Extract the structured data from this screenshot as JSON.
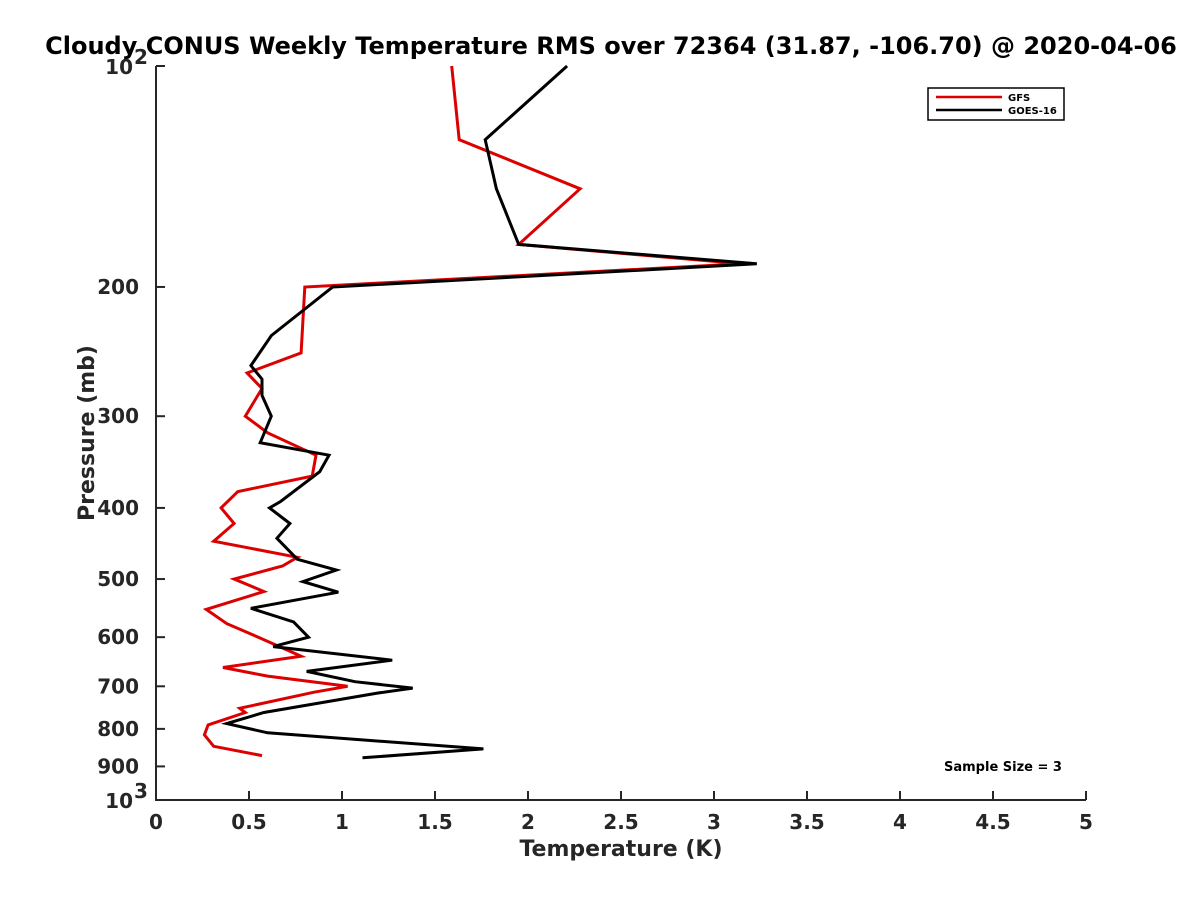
{
  "chart_data": {
    "type": "line",
    "title": "Cloudy CONUS Weekly Temperature RMS over 72364 (31.87, -106.70) @ 2020-04-06",
    "xlabel": "Temperature (K)",
    "ylabel": "Pressure (mb)",
    "xlim": [
      0,
      5
    ],
    "ylim": [
      100,
      1000
    ],
    "y_scale": "log",
    "y_reversed": true,
    "x_ticks": [
      "0",
      "0.5",
      "1",
      "1.5",
      "2",
      "2.5",
      "3",
      "3.5",
      "4",
      "4.5",
      "5"
    ],
    "x_tick_values": [
      0,
      0.5,
      1,
      1.5,
      2,
      2.5,
      3,
      3.5,
      4,
      4.5,
      5
    ],
    "y_ticks": [
      {
        "value": 100,
        "base": "10",
        "exp": "2",
        "label": ""
      },
      {
        "value": 200,
        "base": "",
        "exp": "",
        "label": "200"
      },
      {
        "value": 300,
        "base": "",
        "exp": "",
        "label": "300"
      },
      {
        "value": 400,
        "base": "",
        "exp": "",
        "label": "400"
      },
      {
        "value": 500,
        "base": "",
        "exp": "",
        "label": "500"
      },
      {
        "value": 600,
        "base": "",
        "exp": "",
        "label": "600"
      },
      {
        "value": 700,
        "base": "",
        "exp": "",
        "label": "700"
      },
      {
        "value": 800,
        "base": "",
        "exp": "",
        "label": "800"
      },
      {
        "value": 900,
        "base": "",
        "exp": "",
        "label": "900"
      },
      {
        "value": 1000,
        "base": "10",
        "exp": "3",
        "label": ""
      }
    ],
    "grid": false,
    "legend_position": "top-right",
    "annotation": "Sample Size = 3",
    "series": [
      {
        "name": "GFS",
        "color": "#dd0000",
        "points": [
          [
            1.59,
            100
          ],
          [
            1.63,
            126
          ],
          [
            2.28,
            147
          ],
          [
            1.95,
            175
          ],
          [
            3.15,
            186
          ],
          [
            0.8,
            200
          ],
          [
            0.78,
            246
          ],
          [
            0.49,
            262
          ],
          [
            0.57,
            275
          ],
          [
            0.48,
            300
          ],
          [
            0.6,
            316
          ],
          [
            0.86,
            339
          ],
          [
            0.84,
            362
          ],
          [
            0.44,
            380
          ],
          [
            0.35,
            400
          ],
          [
            0.42,
            420
          ],
          [
            0.31,
            444
          ],
          [
            0.76,
            467
          ],
          [
            0.68,
            480
          ],
          [
            0.42,
            500
          ],
          [
            0.58,
            520
          ],
          [
            0.27,
            550
          ],
          [
            0.38,
            575
          ],
          [
            0.55,
            600
          ],
          [
            0.72,
            627
          ],
          [
            0.78,
            637
          ],
          [
            0.36,
            660
          ],
          [
            0.6,
            678
          ],
          [
            1.03,
            700
          ],
          [
            0.85,
            713
          ],
          [
            0.45,
            750
          ],
          [
            0.48,
            760
          ],
          [
            0.28,
            790
          ],
          [
            0.26,
            815
          ],
          [
            0.31,
            845
          ],
          [
            0.57,
            870
          ]
        ]
      },
      {
        "name": "GOES-16",
        "color": "#000000",
        "points": [
          [
            2.21,
            100
          ],
          [
            1.77,
            126
          ],
          [
            1.83,
            147
          ],
          [
            1.95,
            175
          ],
          [
            3.23,
            186
          ],
          [
            0.95,
            200
          ],
          [
            0.62,
            233
          ],
          [
            0.51,
            256
          ],
          [
            0.57,
            267
          ],
          [
            0.57,
            281
          ],
          [
            0.62,
            300
          ],
          [
            0.56,
            326
          ],
          [
            0.93,
            339
          ],
          [
            0.88,
            357
          ],
          [
            0.67,
            392
          ],
          [
            0.61,
            400
          ],
          [
            0.72,
            420
          ],
          [
            0.65,
            440
          ],
          [
            0.76,
            470
          ],
          [
            0.97,
            486
          ],
          [
            0.79,
            504
          ],
          [
            0.98,
            521
          ],
          [
            0.51,
            548
          ],
          [
            0.74,
            572
          ],
          [
            0.82,
            600
          ],
          [
            0.63,
            618
          ],
          [
            1.27,
            645
          ],
          [
            0.81,
            668
          ],
          [
            1.07,
            690
          ],
          [
            1.38,
            704
          ],
          [
            1.19,
            715
          ],
          [
            0.58,
            760
          ],
          [
            0.38,
            787
          ],
          [
            0.6,
            810
          ],
          [
            1.76,
            852
          ],
          [
            1.11,
            876
          ]
        ]
      }
    ]
  }
}
